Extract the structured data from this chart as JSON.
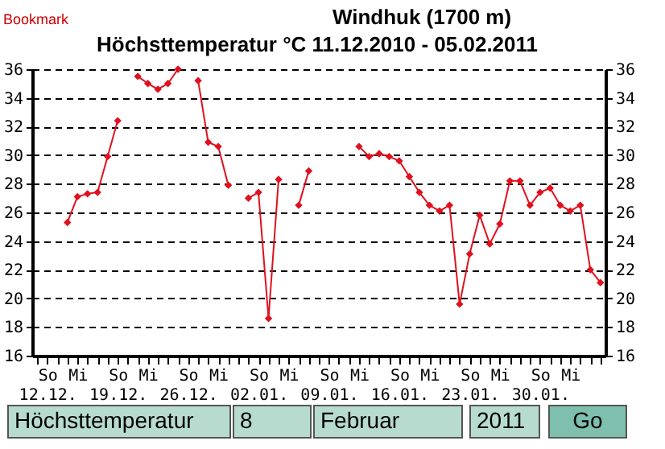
{
  "chart_data": {
    "type": "line",
    "title": "Windhuk (1700 m)",
    "subtitle": "Höchsttemperatur °C 11.12.2010 - 05.02.2011",
    "x": [
      "2010-12-14",
      "2010-12-15",
      "2010-12-16",
      "2010-12-17",
      "2010-12-18",
      "2010-12-19",
      "2010-12-20",
      "2010-12-21",
      "2010-12-22",
      "2010-12-23",
      "2010-12-24",
      "2010-12-25",
      "2010-12-26",
      "2010-12-27",
      "2010-12-28",
      "2010-12-29",
      "2010-12-30",
      "2010-12-31",
      "2011-01-01",
      "2011-01-02",
      "2011-01-03",
      "2011-01-04",
      "2011-01-05",
      "2011-01-06",
      "2011-01-07",
      "2011-01-08",
      "2011-01-09",
      "2011-01-10",
      "2011-01-11",
      "2011-01-12",
      "2011-01-13",
      "2011-01-14",
      "2011-01-15",
      "2011-01-16",
      "2011-01-17",
      "2011-01-18",
      "2011-01-19",
      "2011-01-20",
      "2011-01-21",
      "2011-01-22",
      "2011-01-23",
      "2011-01-24",
      "2011-01-25",
      "2011-01-26",
      "2011-01-27",
      "2011-01-28",
      "2011-01-29",
      "2011-01-30",
      "2011-01-31",
      "2011-02-01",
      "2011-02-02",
      "2011-02-03",
      "2011-02-04",
      "2011-02-05"
    ],
    "series": [
      {
        "color": "#e0101e",
        "values": [
          25.3,
          27.1,
          27.3,
          27.4,
          29.9,
          32.4,
          null,
          35.5,
          35.0,
          34.6,
          35.0,
          36.0,
          null,
          35.2,
          30.9,
          30.6,
          27.9,
          null,
          27.0,
          27.4,
          18.6,
          28.3,
          null,
          26.5,
          28.9,
          null,
          null,
          null,
          null,
          30.6,
          29.9,
          30.1,
          29.9,
          29.6,
          28.5,
          27.4,
          26.5,
          26.1,
          26.5,
          19.6,
          23.1,
          25.8,
          23.8,
          25.2,
          28.2,
          28.2,
          26.5,
          27.4,
          27.7,
          26.5,
          26.1,
          26.5,
          22.0,
          21.1
        ]
      }
    ],
    "xlim": [
      "2010-12-10T12:00",
      "2011-02-05T12:00"
    ],
    "xticks": [
      {
        "value": "2010-12-11",
        "label": null
      },
      {
        "value": "2010-12-12",
        "label": "So\n12.12."
      },
      {
        "value": "2010-12-13",
        "label": null
      },
      {
        "value": "2010-12-14",
        "label": null
      },
      {
        "value": "2010-12-15",
        "label": "Mi"
      },
      {
        "value": "2010-12-16",
        "label": null
      },
      {
        "value": "2010-12-17",
        "label": null
      },
      {
        "value": "2010-12-18",
        "label": null
      },
      {
        "value": "2010-12-19",
        "label": "So\n19.12."
      },
      {
        "value": "2010-12-20",
        "label": null
      },
      {
        "value": "2010-12-21",
        "label": null
      },
      {
        "value": "2010-12-22",
        "label": "Mi"
      },
      {
        "value": "2010-12-23",
        "label": null
      },
      {
        "value": "2010-12-24",
        "label": null
      },
      {
        "value": "2010-12-25",
        "label": null
      },
      {
        "value": "2010-12-26",
        "label": "So\n26.12."
      },
      {
        "value": "2010-12-27",
        "label": null
      },
      {
        "value": "2010-12-28",
        "label": null
      },
      {
        "value": "2010-12-29",
        "label": "Mi"
      },
      {
        "value": "2010-12-30",
        "label": null
      },
      {
        "value": "2010-12-31",
        "label": null
      },
      {
        "value": "2011-01-01",
        "label": null
      },
      {
        "value": "2011-01-02",
        "label": "So\n02.01."
      },
      {
        "value": "2011-01-03",
        "label": null
      },
      {
        "value": "2011-01-04",
        "label": null
      },
      {
        "value": "2011-01-05",
        "label": "Mi"
      },
      {
        "value": "2011-01-06",
        "label": null
      },
      {
        "value": "2011-01-07",
        "label": null
      },
      {
        "value": "2011-01-08",
        "label": null
      },
      {
        "value": "2011-01-09",
        "label": "So\n09.01."
      },
      {
        "value": "2011-01-10",
        "label": null
      },
      {
        "value": "2011-01-11",
        "label": null
      },
      {
        "value": "2011-01-12",
        "label": "Mi"
      },
      {
        "value": "2011-01-13",
        "label": null
      },
      {
        "value": "2011-01-14",
        "label": null
      },
      {
        "value": "2011-01-15",
        "label": null
      },
      {
        "value": "2011-01-16",
        "label": "So\n16.01."
      },
      {
        "value": "2011-01-17",
        "label": null
      },
      {
        "value": "2011-01-18",
        "label": null
      },
      {
        "value": "2011-01-19",
        "label": "Mi"
      },
      {
        "value": "2011-01-20",
        "label": null
      },
      {
        "value": "2011-01-21",
        "label": null
      },
      {
        "value": "2011-01-22",
        "label": null
      },
      {
        "value": "2011-01-23",
        "label": "So\n23.01."
      },
      {
        "value": "2011-01-24",
        "label": null
      },
      {
        "value": "2011-01-25",
        "label": null
      },
      {
        "value": "2011-01-26",
        "label": "Mi"
      },
      {
        "value": "2011-01-27",
        "label": null
      },
      {
        "value": "2011-01-28",
        "label": null
      },
      {
        "value": "2011-01-29",
        "label": null
      },
      {
        "value": "2011-01-30",
        "label": "So\n30.01."
      },
      {
        "value": "2011-01-31",
        "label": null
      },
      {
        "value": "2011-02-01",
        "label": null
      },
      {
        "value": "2011-02-02",
        "label": "Mi"
      },
      {
        "value": "2011-02-03",
        "label": null
      },
      {
        "value": "2011-02-04",
        "label": null
      },
      {
        "value": "2011-02-05",
        "label": null
      }
    ],
    "ylim": [
      16,
      36
    ],
    "yticks": [
      16,
      18,
      20,
      22,
      24,
      26,
      28,
      30,
      32,
      34,
      36
    ],
    "y2lim": [
      16,
      36
    ],
    "y2ticks": [
      16,
      18,
      20,
      22,
      24,
      26,
      28,
      30,
      32,
      34,
      36
    ],
    "grid": "y",
    "marker": "diamond",
    "line_style": "solid",
    "annotations": [
      "Bookmark",
      "Höchsttemperatur",
      "8",
      "Februar",
      "2011",
      "Go"
    ]
  }
}
